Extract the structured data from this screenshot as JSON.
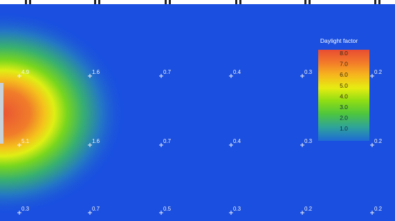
{
  "chart_data": {
    "type": "heatmap",
    "title": "",
    "legend": {
      "title": "Daylight factor",
      "ticks": [
        "8.0",
        "7.0",
        "6.0",
        "5.0",
        "4.0",
        "3.0",
        "2.0",
        "1.0"
      ],
      "placement": "right"
    },
    "colorscale": [
      {
        "value": 0.5,
        "color": "#1a4fe0"
      },
      {
        "value": 1.0,
        "color": "#1e6ad6"
      },
      {
        "value": 2.0,
        "color": "#2fa39a"
      },
      {
        "value": 3.0,
        "color": "#4fc63c"
      },
      {
        "value": 4.0,
        "color": "#8fdd14"
      },
      {
        "value": 5.0,
        "color": "#e6ec12"
      },
      {
        "value": 6.0,
        "color": "#f6b71d"
      },
      {
        "value": 7.0,
        "color": "#f37a2a"
      },
      {
        "value": 8.0,
        "color": "#e84d33"
      }
    ],
    "sensor_points": [
      {
        "label": "4.9",
        "value": 4.9
      },
      {
        "label": "1.6",
        "value": 1.6
      },
      {
        "label": "0.7",
        "value": 0.7
      },
      {
        "label": "0.4",
        "value": 0.4
      },
      {
        "label": "0.3",
        "value": 0.3
      },
      {
        "label": "0.2",
        "value": 0.2
      },
      {
        "label": "5.1",
        "value": 5.1
      },
      {
        "label": "1.6",
        "value": 1.6
      },
      {
        "label": "0.7",
        "value": 0.7
      },
      {
        "label": "0.4",
        "value": 0.4
      },
      {
        "label": "0.3",
        "value": 0.3
      },
      {
        "label": "0.2",
        "value": 0.2
      },
      {
        "label": "0.3",
        "value": 0.3
      },
      {
        "label": "0.7",
        "value": 0.7
      },
      {
        "label": "0.5",
        "value": 0.5
      },
      {
        "label": "0.3",
        "value": 0.3
      },
      {
        "label": "0.2",
        "value": 0.2
      },
      {
        "label": "0.2",
        "value": 0.2
      }
    ]
  }
}
